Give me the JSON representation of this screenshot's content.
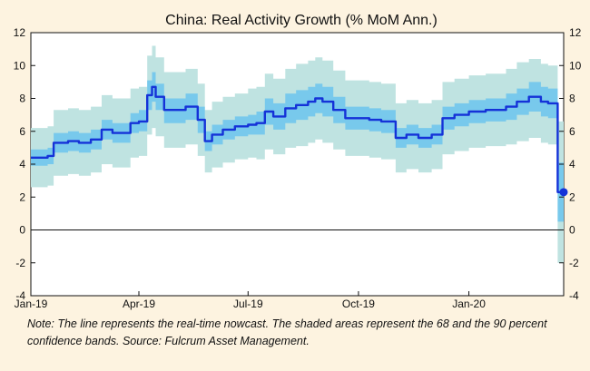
{
  "chart_data": {
    "type": "line",
    "title": "China: Real Activity Growth (% MoM Ann.)",
    "xlabel": "",
    "ylabel": "",
    "ylim": [
      -4,
      12
    ],
    "yticks": [
      -4,
      -2,
      0,
      2,
      4,
      6,
      8,
      10,
      12
    ],
    "xticks": [
      "Jan-19",
      "Apr-19",
      "Jul-19",
      "Oct-19",
      "Jan-20"
    ],
    "xrange": [
      "2019-01-01",
      "2020-03-20"
    ],
    "grid": false,
    "legend": "none",
    "colors": {
      "line": "#1432d8",
      "band68": "#78c9ec",
      "band90": "#bfe3e1",
      "frame_bg": "#ffffff",
      "page_bg": "#fdf3e0"
    },
    "series": [
      {
        "type": "step-line",
        "x": [
          "2019-01-01",
          "2019-01-10",
          "2019-01-15",
          "2019-01-20",
          "2019-02-01",
          "2019-02-10",
          "2019-02-20",
          "2019-03-01",
          "2019-03-10",
          "2019-03-20",
          "2019-03-25",
          "2019-04-01",
          "2019-04-08",
          "2019-04-12",
          "2019-04-15",
          "2019-04-22",
          "2019-05-01",
          "2019-05-10",
          "2019-05-20",
          "2019-05-26",
          "2019-06-01",
          "2019-06-10",
          "2019-06-20",
          "2019-07-01",
          "2019-07-08",
          "2019-07-15",
          "2019-07-22",
          "2019-08-01",
          "2019-08-10",
          "2019-08-20",
          "2019-08-26",
          "2019-09-01",
          "2019-09-10",
          "2019-09-20",
          "2019-10-01",
          "2019-10-10",
          "2019-10-20",
          "2019-11-01",
          "2019-11-10",
          "2019-11-20",
          "2019-12-01",
          "2019-12-10",
          "2019-12-20",
          "2020-01-01",
          "2020-01-15",
          "2020-02-01",
          "2020-02-10",
          "2020-02-20",
          "2020-03-01",
          "2020-03-07",
          "2020-03-15"
        ],
        "y": [
          4.4,
          4.4,
          4.5,
          5.3,
          5.4,
          5.3,
          5.5,
          6.1,
          5.9,
          5.9,
          6.5,
          6.6,
          8.2,
          8.7,
          8.1,
          7.3,
          7.3,
          7.5,
          6.7,
          5.4,
          5.8,
          6.1,
          6.3,
          6.4,
          6.5,
          7.2,
          6.9,
          7.4,
          7.6,
          7.8,
          8.0,
          7.8,
          7.3,
          6.8,
          6.8,
          6.7,
          6.6,
          5.6,
          5.8,
          5.6,
          5.8,
          6.8,
          7.0,
          7.2,
          7.3,
          7.5,
          7.8,
          8.1,
          7.8,
          7.7,
          2.3
        ]
      },
      {
        "type": "band-68",
        "lower": [
          3.9,
          3.9,
          4.0,
          4.7,
          4.8,
          4.7,
          4.9,
          5.5,
          5.3,
          5.3,
          5.9,
          6.0,
          7.3,
          7.8,
          7.3,
          6.5,
          6.5,
          6.7,
          5.9,
          4.8,
          5.2,
          5.5,
          5.7,
          5.8,
          5.8,
          6.4,
          6.1,
          6.5,
          6.7,
          6.9,
          7.1,
          6.9,
          6.5,
          6.1,
          6.1,
          6.0,
          5.9,
          5.0,
          5.2,
          5.0,
          5.2,
          6.1,
          6.3,
          6.5,
          6.6,
          6.7,
          7.0,
          7.2,
          6.9,
          6.8,
          0.5
        ],
        "upper": [
          4.9,
          4.9,
          5.0,
          5.9,
          6.0,
          5.9,
          6.1,
          6.7,
          6.5,
          6.5,
          7.1,
          7.3,
          9.1,
          9.6,
          8.9,
          8.0,
          8.0,
          8.3,
          7.5,
          6.0,
          6.4,
          6.7,
          6.9,
          7.0,
          7.2,
          8.0,
          7.7,
          8.3,
          8.5,
          8.7,
          8.9,
          8.7,
          8.1,
          7.5,
          7.5,
          7.4,
          7.3,
          6.2,
          6.4,
          6.2,
          6.4,
          7.5,
          7.7,
          7.9,
          8.0,
          8.3,
          8.6,
          9.0,
          8.7,
          8.6,
          4.1
        ]
      },
      {
        "type": "band-90",
        "lower": [
          2.6,
          2.6,
          2.7,
          3.3,
          3.4,
          3.3,
          3.5,
          4.0,
          3.8,
          3.8,
          4.4,
          4.5,
          5.8,
          6.2,
          5.7,
          5.0,
          5.0,
          5.2,
          4.5,
          3.5,
          3.8,
          4.1,
          4.3,
          4.4,
          4.3,
          4.9,
          4.6,
          5.0,
          5.1,
          5.3,
          5.5,
          5.3,
          4.9,
          4.5,
          4.5,
          4.4,
          4.3,
          3.5,
          3.7,
          3.5,
          3.7,
          4.6,
          4.8,
          5.0,
          5.1,
          5.2,
          5.4,
          5.6,
          5.3,
          5.2,
          -2.0
        ],
        "upper": [
          6.2,
          6.2,
          6.3,
          7.3,
          7.4,
          7.3,
          7.5,
          8.2,
          8.0,
          8.0,
          8.6,
          8.7,
          10.6,
          11.2,
          10.5,
          9.6,
          9.6,
          9.8,
          8.9,
          7.3,
          7.8,
          8.1,
          8.3,
          8.6,
          8.7,
          9.5,
          9.2,
          9.8,
          10.1,
          10.3,
          10.5,
          10.3,
          9.7,
          9.1,
          9.1,
          9.0,
          8.9,
          7.7,
          7.9,
          7.7,
          7.9,
          9.0,
          9.2,
          9.4,
          9.5,
          9.8,
          10.2,
          10.4,
          10.1,
          10.0,
          6.6
        ]
      }
    ],
    "endpoint": {
      "x": "2020-03-20",
      "y": 2.3
    }
  },
  "note": "Note: The line represents the real-time nowcast. The shaded areas represent the 68 and the 90 percent confidence bands. Source: Fulcrum Asset Management."
}
